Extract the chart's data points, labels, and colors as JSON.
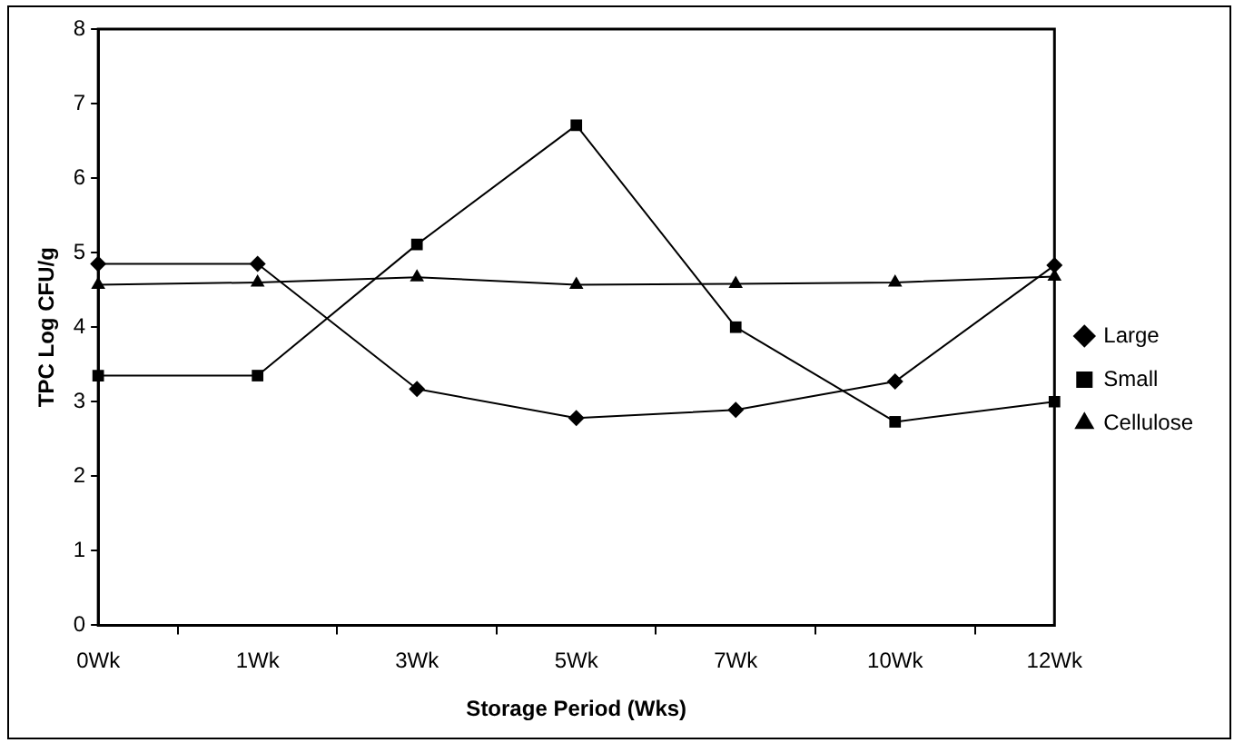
{
  "chart_data": {
    "type": "line",
    "xlabel": "Storage Period (Wks)",
    "ylabel": "TPC Log CFU/g",
    "categories": [
      "0Wk",
      "1Wk",
      "3Wk",
      "5Wk",
      "7Wk",
      "10Wk",
      "12Wk"
    ],
    "ylim": [
      0,
      8
    ],
    "yticks": [
      0,
      1,
      2,
      3,
      4,
      5,
      6,
      7,
      8
    ],
    "grid": false,
    "legend": "right",
    "line_style": "solid",
    "series": [
      {
        "name": "Large",
        "color": "#000000",
        "marker": "diamond",
        "values": [
          4.85,
          4.85,
          3.17,
          2.78,
          2.89,
          3.27,
          4.83
        ]
      },
      {
        "name": "Small",
        "color": "#000000",
        "marker": "square",
        "values": [
          3.35,
          3.35,
          5.11,
          6.71,
          4.0,
          2.73,
          3.0
        ]
      },
      {
        "name": "Cellulose",
        "color": "#000000",
        "marker": "triangle",
        "values": [
          4.57,
          4.6,
          4.67,
          4.57,
          4.58,
          4.6,
          4.68
        ]
      }
    ]
  }
}
